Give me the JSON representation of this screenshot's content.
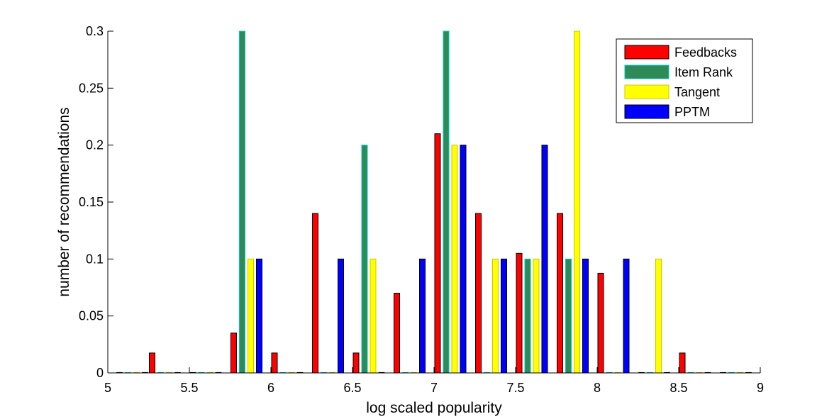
{
  "chart_data": {
    "type": "bar",
    "xlabel": "log scaled popularity",
    "ylabel": "number of recommendations",
    "xlim": [
      5,
      9
    ],
    "ylim": [
      0,
      0.3
    ],
    "x_ticks": [
      "5",
      "5.5",
      "6",
      "6.5",
      "7",
      "7.5",
      "8",
      "8.5",
      "9"
    ],
    "y_ticks": [
      "0",
      "0.05",
      "0.1",
      "0.15",
      "0.2",
      "0.25",
      "0.3"
    ],
    "grid": false,
    "legend_position": "top-right",
    "bins": [
      5.15,
      5.35,
      5.6,
      5.85,
      6.1,
      6.35,
      6.6,
      6.85,
      7.1,
      7.35,
      7.6,
      7.85,
      8.1,
      8.35,
      8.6,
      8.85
    ],
    "series": [
      {
        "name": "Feedbacks",
        "color": "#ff0000",
        "edge": "#000000",
        "values": [
          0.0,
          0.0175,
          0.0,
          0.035,
          0.0175,
          0.14,
          0.0175,
          0.07,
          0.21,
          0.14,
          0.105,
          0.14,
          0.0875,
          0.0,
          0.0175,
          0.0
        ]
      },
      {
        "name": "Item Rank",
        "color": "#2e8b57",
        "edge": "#00c8c8",
        "values": [
          0.0,
          0.0,
          0.0,
          0.3,
          0.0,
          0.0,
          0.2,
          0.0,
          0.3,
          0.0,
          0.1,
          0.1,
          0.0,
          0.0,
          0.0,
          0.0
        ]
      },
      {
        "name": "Tangent",
        "color": "#ffff00",
        "edge": "#c8c800",
        "values": [
          0.0,
          0.0,
          0.0,
          0.1,
          0.0,
          0.0,
          0.1,
          0.0,
          0.2,
          0.1,
          0.1,
          0.3,
          0.0,
          0.1,
          0.0,
          0.0
        ]
      },
      {
        "name": "PPTM",
        "color": "#0000ff",
        "edge": "#000000",
        "values": [
          0.0,
          0.0,
          0.0,
          0.1,
          0.0,
          0.1,
          0.0,
          0.1,
          0.2,
          0.1,
          0.2,
          0.1,
          0.1,
          0.0,
          0.0,
          0.0
        ]
      }
    ]
  }
}
